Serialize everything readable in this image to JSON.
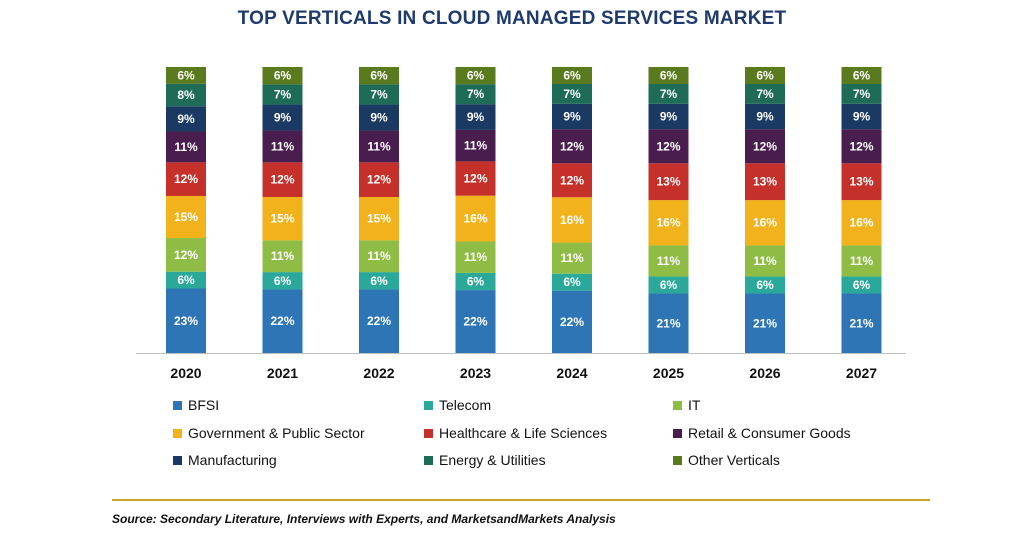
{
  "chart_data": {
    "type": "bar",
    "stacked": true,
    "title": "TOP VERTICALS IN CLOUD MANAGED SERVICES MARKET",
    "categories": [
      "2020",
      "2021",
      "2022",
      "2023",
      "2024",
      "2025",
      "2026",
      "2027"
    ],
    "series": [
      {
        "name": "BFSI",
        "color": "#2e75b6",
        "values": [
          23,
          22,
          22,
          22,
          22,
          21,
          21,
          21
        ]
      },
      {
        "name": "Telecom",
        "color": "#2aa89a",
        "values": [
          6,
          6,
          6,
          6,
          6,
          6,
          6,
          6
        ]
      },
      {
        "name": "IT",
        "color": "#8fbc45",
        "values": [
          12,
          11,
          11,
          11,
          11,
          11,
          11,
          11
        ]
      },
      {
        "name": "Government & Public Sector",
        "color": "#f2b21b",
        "values": [
          15,
          15,
          15,
          16,
          16,
          16,
          16,
          16
        ]
      },
      {
        "name": "Healthcare & Life Sciences",
        "color": "#c6302b",
        "values": [
          12,
          12,
          12,
          12,
          12,
          13,
          13,
          13
        ]
      },
      {
        "name": "Retail & Consumer Goods",
        "color": "#4a1d4f",
        "values": [
          11,
          11,
          11,
          11,
          12,
          12,
          12,
          12
        ]
      },
      {
        "name": "Manufacturing",
        "color": "#1b3a63",
        "values": [
          9,
          9,
          9,
          9,
          9,
          9,
          9,
          9
        ]
      },
      {
        "name": "Energy & Utilities",
        "color": "#1e6b57",
        "values": [
          8,
          7,
          7,
          7,
          7,
          7,
          7,
          7
        ]
      },
      {
        "name": "Other Verticals",
        "color": "#5a7a1e",
        "values": [
          6,
          6,
          6,
          6,
          6,
          6,
          6,
          6
        ]
      }
    ],
    "value_suffix": "%",
    "legend": {
      "position": "bottom"
    },
    "grid": false,
    "source": "Source: Secondary Literature, Interviews with Experts, and MarketsandMarkets Analysis"
  }
}
